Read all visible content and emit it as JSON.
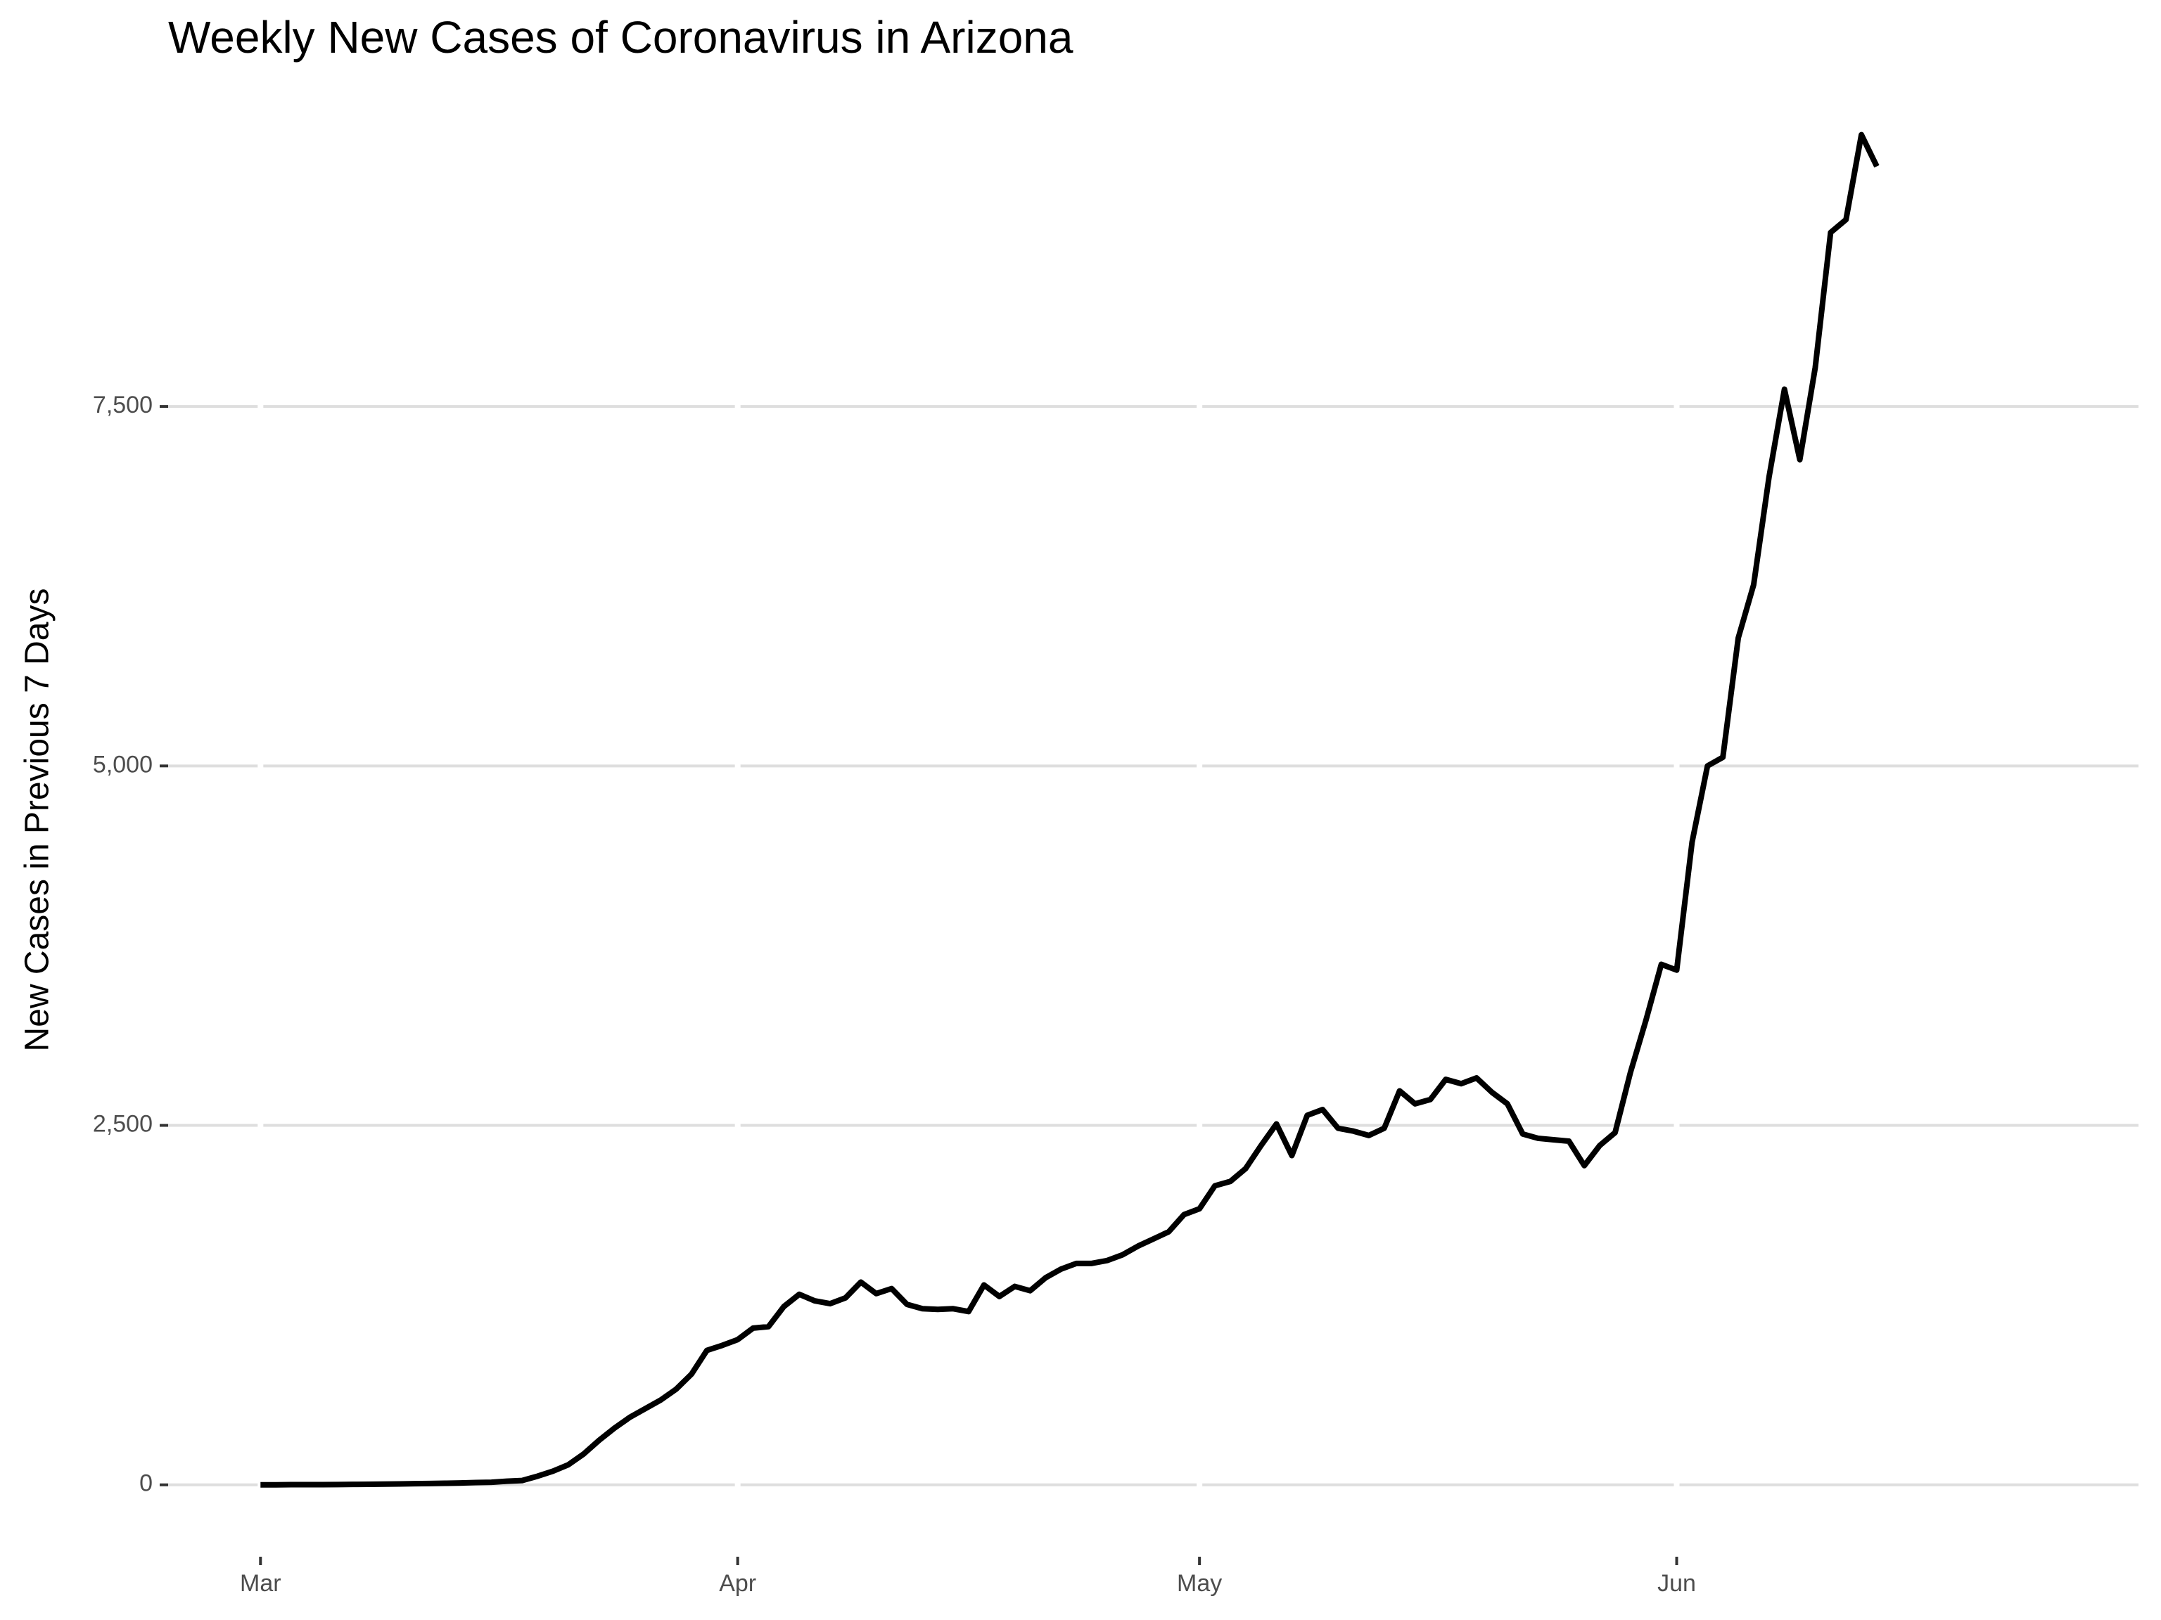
{
  "chart_data": {
    "type": "line",
    "title": "Weekly New Cases of Coronavirus in Arizona",
    "y_label": "New Cases in Previous 7 Days",
    "x": [
      0,
      1,
      2,
      3,
      4,
      5,
      6,
      7,
      8,
      9,
      10,
      11,
      12,
      13,
      14,
      15,
      16,
      17,
      18,
      19,
      20,
      21,
      22,
      23,
      24,
      25,
      26,
      27,
      28,
      29,
      30,
      31,
      32,
      33,
      34,
      35,
      36,
      37,
      38,
      39,
      40,
      41,
      42,
      43,
      44,
      45,
      46,
      47,
      48,
      49,
      50,
      51,
      52,
      53,
      54,
      55,
      56,
      57,
      58,
      59,
      60,
      61,
      62,
      63,
      64,
      65,
      66,
      67,
      68,
      69,
      70,
      71,
      72,
      73,
      74,
      75,
      76,
      77,
      78,
      79,
      80,
      81,
      82,
      83,
      84,
      85,
      86,
      87,
      88,
      89,
      90,
      91,
      92,
      93,
      94,
      95,
      96,
      97,
      98,
      99,
      100,
      101,
      102,
      103,
      104,
      105
    ],
    "series": [
      {
        "color": "#000000",
        "values": [
          0,
          0,
          1,
          1,
          1,
          2,
          3,
          4,
          5,
          6,
          8,
          9,
          11,
          13,
          16,
          18,
          25,
          30,
          60,
          95,
          140,
          215,
          310,
          395,
          470,
          530,
          590,
          665,
          770,
          935,
          970,
          1010,
          1090,
          1100,
          1240,
          1325,
          1280,
          1260,
          1300,
          1410,
          1330,
          1365,
          1255,
          1225,
          1220,
          1225,
          1205,
          1390,
          1310,
          1380,
          1350,
          1440,
          1500,
          1540,
          1540,
          1560,
          1600,
          1660,
          1710,
          1760,
          1880,
          1920,
          2080,
          2110,
          2200,
          2360,
          2510,
          2290,
          2570,
          2610,
          2480,
          2460,
          2430,
          2480,
          2740,
          2650,
          2680,
          2820,
          2790,
          2830,
          2730,
          2650,
          2440,
          2410,
          2400,
          2390,
          2220,
          2360,
          2450,
          2870,
          3230,
          3620,
          3580,
          4470,
          5000,
          5060,
          5890,
          6260,
          7010,
          7620,
          7130,
          7770,
          8710,
          8800,
          9390,
          9170
        ]
      }
    ],
    "xlim": [
      -6,
      122
    ],
    "xticks": [
      {
        "value": 0,
        "label": "Mar"
      },
      {
        "value": 31,
        "label": "Apr"
      },
      {
        "value": 61,
        "label": "May"
      },
      {
        "value": 92,
        "label": "Jun"
      }
    ],
    "ylim": [
      -500,
      9750
    ],
    "yticks": [
      0,
      {
        "value": 2500,
        "label": "2,500"
      },
      {
        "value": 5000,
        "label": "5,000"
      },
      {
        "value": 7500,
        "label": "7,500"
      }
    ],
    "grid": true
  }
}
